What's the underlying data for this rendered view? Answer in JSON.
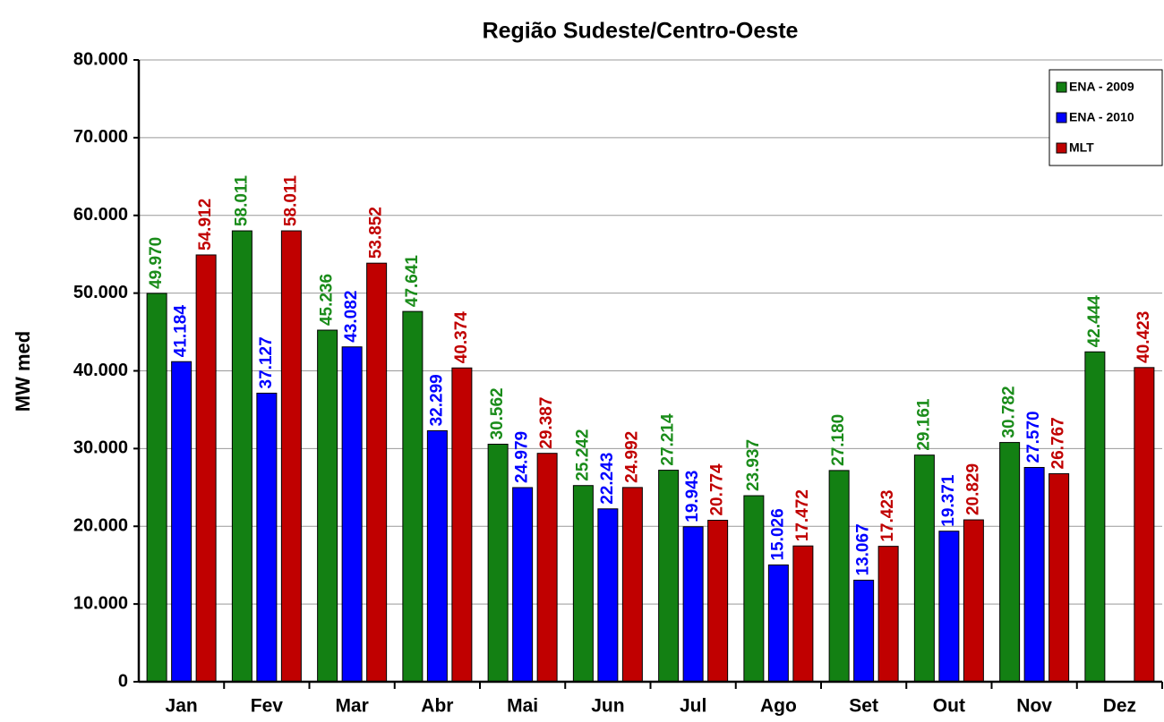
{
  "chart_data": {
    "type": "bar",
    "title": "Região Sudeste/Centro-Oeste",
    "y_label": "MW med",
    "categories": [
      "Jan",
      "Fev",
      "Mar",
      "Abr",
      "Mai",
      "Jun",
      "Jul",
      "Ago",
      "Set",
      "Out",
      "Nov",
      "Dez"
    ],
    "series": [
      {
        "name": "ENA - 2009",
        "color": "#138013",
        "label_color": "#1a8c1a",
        "values": [
          49970,
          58011,
          45236,
          47641,
          30562,
          25242,
          27214,
          23937,
          27180,
          29161,
          30782,
          42444
        ],
        "value_labels": [
          "49.970",
          "58.011",
          "45.236",
          "47.641",
          "30.562",
          "25.242",
          "27.214",
          "23.937",
          "27.180",
          "29.161",
          "30.782",
          "42.444"
        ]
      },
      {
        "name": "ENA - 2010",
        "color": "#0000ff",
        "label_color": "#0000ff",
        "values": [
          41184,
          37127,
          43082,
          32299,
          24979,
          22243,
          19943,
          15026,
          13067,
          19371,
          27570,
          null
        ],
        "value_labels": [
          "41.184",
          "37.127",
          "43.082",
          "32.299",
          "24.979",
          "22.243",
          "19.943",
          "15.026",
          "13.067",
          "19.371",
          "27.570",
          null
        ]
      },
      {
        "name": "MLT",
        "color": "#c00000",
        "label_color": "#c00000",
        "values": [
          54912,
          58011,
          53852,
          40374,
          29387,
          24992,
          20774,
          17472,
          17423,
          20829,
          26767,
          40423
        ],
        "value_labels": [
          "54.912",
          "58.011",
          "53.852",
          "40.374",
          "29.387",
          "24.992",
          "20.774",
          "17.472",
          "17.423",
          "20.829",
          "26.767",
          "40.423"
        ]
      }
    ],
    "ylim": [
      0,
      80000
    ],
    "yticks": [
      0,
      {
        "value": 10000,
        "label": "10.000"
      },
      {
        "value": 20000,
        "label": "20.000"
      },
      {
        "value": 30000,
        "label": "30.000"
      },
      {
        "value": 40000,
        "label": "40.000"
      },
      {
        "value": 50000,
        "label": "50.000"
      },
      {
        "value": 60000,
        "label": "60.000"
      },
      {
        "value": 70000,
        "label": "70.000"
      },
      {
        "value": 80000,
        "label": "80.000"
      }
    ],
    "grid": true,
    "legend": "top-right"
  }
}
